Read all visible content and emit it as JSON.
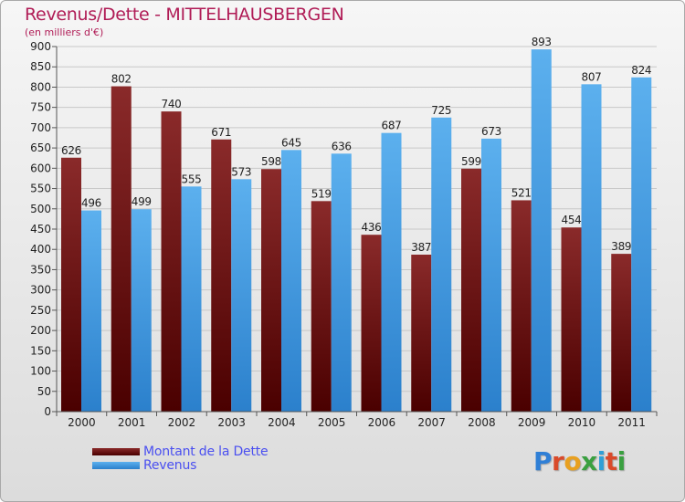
{
  "title": "Revenus/Dette - MITTELHAUSBERGEN",
  "subtitle": "(en milliers d'€)",
  "logo": "Proxiti",
  "colors": {
    "dette": "#7a1a1a",
    "dette_dark": "#4a0505",
    "revenus": "#4fa3e6",
    "revenus_dark": "#2a7fc9",
    "axis_text": "#222222",
    "title": "#b01c56",
    "legend_text": "#4a4ff0"
  },
  "legend": [
    {
      "label": "Montant de la Dette",
      "color": "#6a0f0f"
    },
    {
      "label": "Revenus",
      "color": "#4fa3e6"
    }
  ],
  "chart_data": {
    "type": "bar",
    "categories": [
      "2000",
      "2001",
      "2002",
      "2003",
      "2004",
      "2005",
      "2006",
      "2007",
      "2008",
      "2009",
      "2010",
      "2011"
    ],
    "series": [
      {
        "name": "Montant de la Dette",
        "values": [
          626,
          802,
          740,
          671,
          598,
          519,
          436,
          387,
          599,
          521,
          454,
          389
        ]
      },
      {
        "name": "Revenus",
        "values": [
          496,
          499,
          555,
          573,
          645,
          636,
          687,
          725,
          673,
          893,
          807,
          824
        ]
      }
    ],
    "y_ticks": [
      "0",
      "50",
      "100",
      "150",
      "200",
      "250",
      "300",
      "350",
      "400",
      "450",
      "500",
      "550",
      "600",
      "650",
      "700",
      "750",
      "800",
      "850",
      "900"
    ],
    "ylim": [
      0,
      900
    ],
    "grid": true,
    "legend_position": "bottom-left"
  }
}
